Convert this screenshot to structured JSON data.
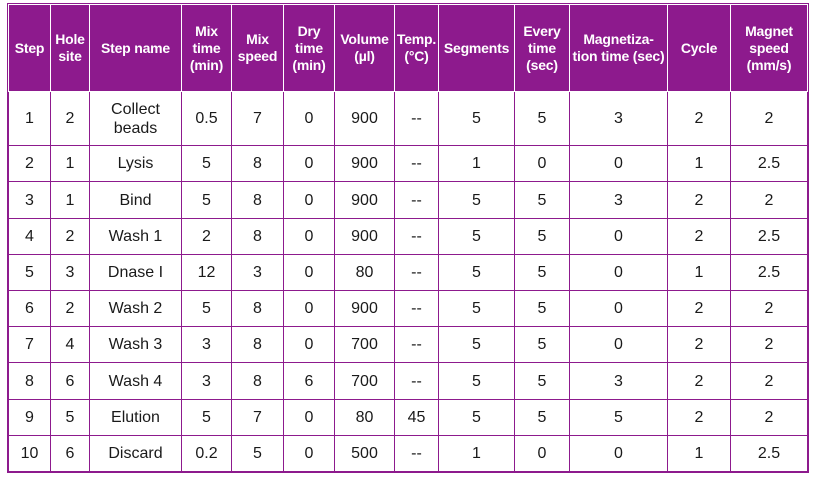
{
  "headers": [
    "Step",
    "Hole site",
    "Step name",
    "Mix time (min)",
    "Mix speed",
    "Dry time (min)",
    "Volume (µl)",
    "Temp. (°C)",
    "Segments",
    "Every time (sec)",
    "Magnetiza-tion time (sec)",
    "Cycle",
    "Magnet speed (mm/s)"
  ],
  "rows": [
    [
      "1",
      "2",
      "Collect beads",
      "0.5",
      "7",
      "0",
      "900",
      "--",
      "5",
      "5",
      "3",
      "2",
      "2"
    ],
    [
      "2",
      "1",
      "Lysis",
      "5",
      "8",
      "0",
      "900",
      "--",
      "1",
      "0",
      "0",
      "1",
      "2.5"
    ],
    [
      "3",
      "1",
      "Bind",
      "5",
      "8",
      "0",
      "900",
      "--",
      "5",
      "5",
      "3",
      "2",
      "2"
    ],
    [
      "4",
      "2",
      "Wash 1",
      "2",
      "8",
      "0",
      "900",
      "--",
      "5",
      "5",
      "0",
      "2",
      "2.5"
    ],
    [
      "5",
      "3",
      "Dnase I",
      "12",
      "3",
      "0",
      "80",
      "--",
      "5",
      "5",
      "0",
      "1",
      "2.5"
    ],
    [
      "6",
      "2",
      "Wash 2",
      "5",
      "8",
      "0",
      "900",
      "--",
      "5",
      "5",
      "0",
      "2",
      "2"
    ],
    [
      "7",
      "4",
      "Wash 3",
      "3",
      "8",
      "0",
      "700",
      "--",
      "5",
      "5",
      "0",
      "2",
      "2"
    ],
    [
      "8",
      "6",
      "Wash 4",
      "3",
      "8",
      "6",
      "700",
      "--",
      "5",
      "5",
      "3",
      "2",
      "2"
    ],
    [
      "9",
      "5",
      "Elution",
      "5",
      "7",
      "0",
      "80",
      "45",
      "5",
      "5",
      "5",
      "2",
      "2"
    ],
    [
      "10",
      "6",
      "Discard",
      "0.2",
      "5",
      "0",
      "500",
      "--",
      "1",
      "0",
      "0",
      "1",
      "2.5"
    ]
  ],
  "colors": {
    "header_background": "#8d1a8d",
    "header_text": "#ffffff",
    "grid_lines": "#8d1a8d"
  }
}
